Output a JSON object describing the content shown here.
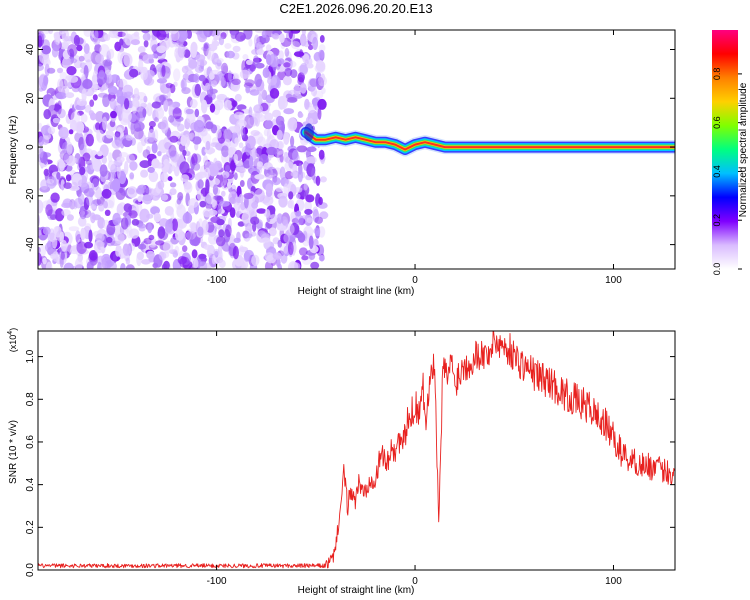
{
  "title": "C2E1.2026.096.20.20.E13",
  "chart_data": [
    {
      "type": "heatmap",
      "xlabel": "Height of straight line (km)",
      "ylabel": "Frequency (Hz)",
      "xlim": [
        -190,
        131
      ],
      "ylim": [
        -50,
        48
      ],
      "xticks": [
        -100,
        0,
        100
      ],
      "yticks": [
        -40,
        -20,
        0,
        20,
        40
      ],
      "noise_region_x": [
        -190,
        -50
      ],
      "ridge": {
        "x": [
          -55,
          -50,
          -45,
          -40,
          -35,
          -30,
          -25,
          -20,
          -15,
          -10,
          -5,
          0,
          5,
          10,
          15,
          20,
          40,
          60,
          80,
          100,
          120,
          131
        ],
        "y": [
          6,
          3,
          3,
          4,
          3,
          4,
          3,
          2,
          2,
          1,
          -1,
          1,
          2,
          1,
          0,
          0,
          0,
          0,
          0,
          0,
          0,
          0
        ]
      },
      "colorbar": {
        "label": "Normalized spectral amplitude",
        "range": [
          0.0,
          0.98
        ],
        "ticks": [
          "0.0",
          "0.2",
          "0.4",
          "0.6",
          "0.8"
        ],
        "tick_values": [
          0.0,
          0.2,
          0.4,
          0.6,
          0.8
        ],
        "colors": [
          "#ffffff",
          "#d9bbff",
          "#7f00ff",
          "#0000ff",
          "#00bfff",
          "#00ff80",
          "#80ff00",
          "#ffd000",
          "#ff8000",
          "#ff0000",
          "#ff0080"
        ]
      }
    },
    {
      "type": "line",
      "xlabel": "Height of straight line (km)",
      "ylabel": "SNR (10 * v/v)",
      "scale_label": "(x10",
      "scale_exp": "4",
      "xlim": [
        -190,
        131
      ],
      "ylim": [
        0,
        1.12
      ],
      "xticks": [
        -100,
        0,
        100
      ],
      "yticks": [
        "0.0",
        "0.2",
        "0.4",
        "0.6",
        "0.8",
        "1.0"
      ],
      "ytick_values": [
        0.0,
        0.2,
        0.4,
        0.6,
        0.8,
        1.0
      ],
      "color": "#e8211f",
      "series": [
        {
          "x": [
            -190,
            -160,
            -130,
            -100,
            -70,
            -45,
            -41,
            -38,
            -36,
            -34,
            -32,
            -30,
            -28,
            -26,
            -24,
            -22,
            -20,
            -18,
            -16,
            -14,
            -12,
            -10,
            -8,
            -6,
            -4,
            -2,
            0,
            2,
            4,
            6,
            8,
            10,
            12,
            14,
            16,
            18,
            20,
            24,
            28,
            32,
            36,
            40,
            44,
            48,
            52,
            56,
            60,
            64,
            68,
            72,
            76,
            80,
            84,
            88,
            92,
            96,
            100,
            104,
            108,
            112,
            116,
            120,
            124,
            128,
            131
          ],
          "y": [
            0.02,
            0.02,
            0.02,
            0.02,
            0.02,
            0.02,
            0.06,
            0.25,
            0.45,
            0.3,
            0.38,
            0.32,
            0.42,
            0.35,
            0.4,
            0.45,
            0.42,
            0.5,
            0.55,
            0.48,
            0.6,
            0.55,
            0.62,
            0.58,
            0.68,
            0.72,
            0.78,
            0.75,
            0.85,
            0.7,
            1.0,
            0.9,
            0.2,
            0.95,
            0.9,
            0.98,
            0.88,
            0.95,
            0.98,
            1.02,
            1.0,
            1.08,
            1.05,
            1.03,
            0.98,
            0.95,
            0.92,
            0.9,
            0.88,
            0.85,
            0.82,
            0.8,
            0.78,
            0.76,
            0.72,
            0.68,
            0.62,
            0.55,
            0.52,
            0.5,
            0.49,
            0.48,
            0.47,
            0.46,
            0.44
          ]
        }
      ]
    }
  ]
}
